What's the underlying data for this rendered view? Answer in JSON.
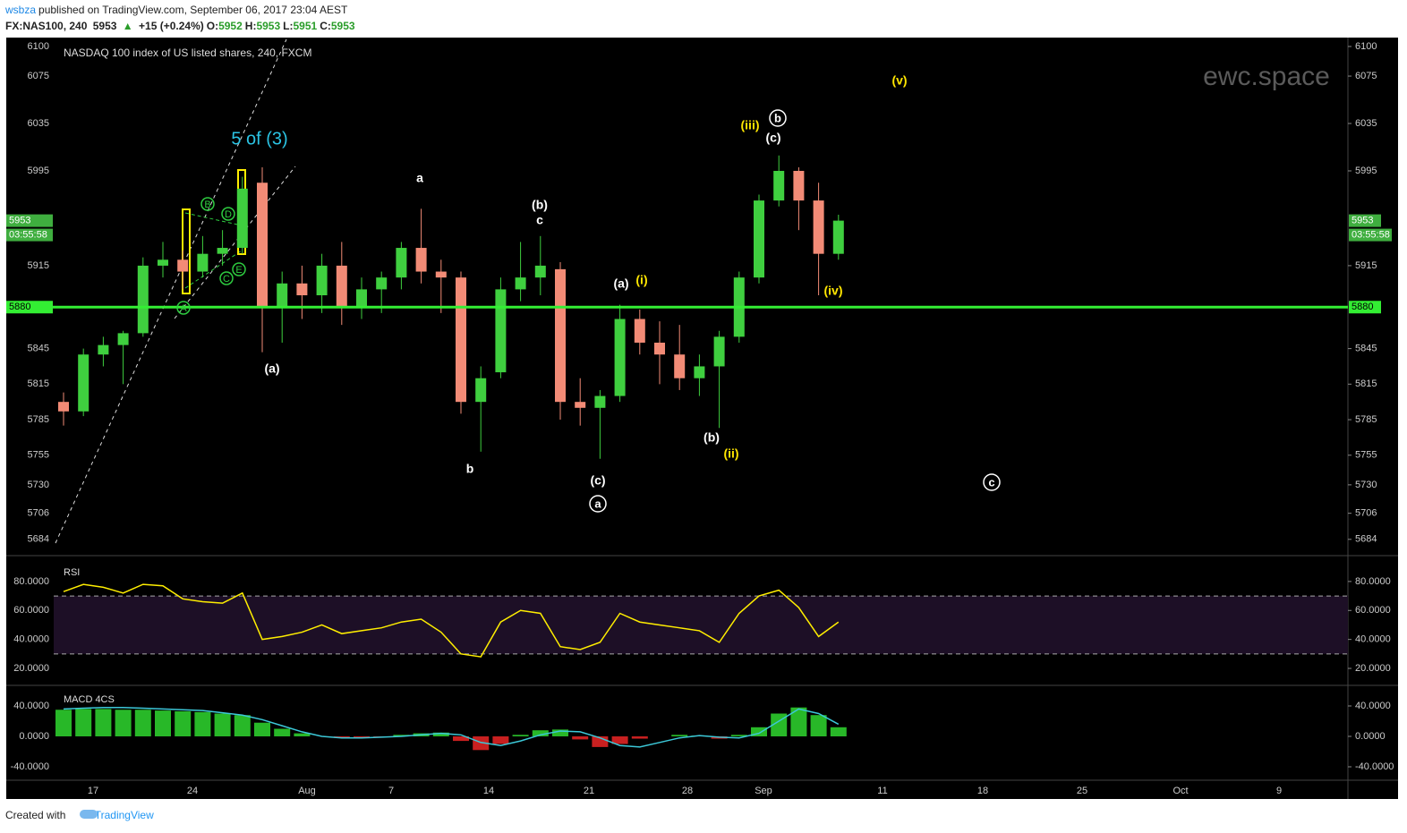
{
  "header": {
    "user": "wsbza",
    "published": "published on TradingView.com, September 06, 2017 23:04 AEST",
    "symbol": "FX:NAS100, 240",
    "last": "5953",
    "change": "+15 (+0.24%)",
    "ohlc": [
      {
        "key": "O:",
        "value": "5952"
      },
      {
        "key": "H:",
        "value": "5953"
      },
      {
        "key": "L:",
        "value": "5951"
      },
      {
        "key": "C:",
        "value": "5953"
      }
    ]
  },
  "footer": {
    "created": "Created with",
    "brand": "TradingView"
  },
  "chart_data": [
    {
      "type": "candlestick",
      "title": "NASDAQ 100 index of US listed shares, 240, FXCM",
      "watermark": "ewc.space",
      "open": [
        5800,
        5792,
        5840,
        5848,
        5858,
        5915,
        5920,
        5910,
        5925,
        5930,
        5985,
        5880,
        5900,
        5890,
        5915,
        5880,
        5895,
        5905,
        5930,
        5910,
        5905,
        5800,
        5825,
        5895,
        5905,
        5912,
        5800,
        5795,
        5805,
        5870,
        5850,
        5840,
        5820,
        5830,
        5855,
        5905,
        5970,
        5995,
        5970,
        5925
      ],
      "high": [
        5808,
        5845,
        5855,
        5860,
        5922,
        5935,
        5928,
        5940,
        5945,
        5990,
        5998,
        5910,
        5915,
        5925,
        5935,
        5905,
        5910,
        5935,
        5963,
        5920,
        5910,
        5830,
        5905,
        5935,
        5940,
        5918,
        5820,
        5810,
        5882,
        5878,
        5868,
        5865,
        5840,
        5860,
        5910,
        5975,
        6008,
        5998,
        5985,
        5958
      ],
      "low": [
        5780,
        5788,
        5830,
        5815,
        5855,
        5905,
        5895,
        5905,
        5915,
        5925,
        5842,
        5850,
        5870,
        5875,
        5865,
        5870,
        5875,
        5895,
        5900,
        5875,
        5790,
        5758,
        5820,
        5885,
        5890,
        5785,
        5780,
        5752,
        5800,
        5840,
        5815,
        5810,
        5805,
        5778,
        5850,
        5900,
        5965,
        5945,
        5890,
        5920
      ],
      "close": [
        5792,
        5840,
        5848,
        5858,
        5915,
        5920,
        5910,
        5925,
        5930,
        5980,
        5880,
        5900,
        5890,
        5915,
        5880,
        5895,
        5905,
        5930,
        5910,
        5905,
        5800,
        5820,
        5895,
        5905,
        5915,
        5800,
        5795,
        5805,
        5870,
        5850,
        5840,
        5820,
        5830,
        5855,
        5905,
        5970,
        5995,
        5970,
        5925,
        5953
      ],
      "up_color": "#3fcf3f",
      "down_color": "#f28b76",
      "ylim": [
        5671,
        6106
      ],
      "yticks": [
        5684,
        5706,
        5730,
        5755,
        5785,
        5815,
        5845,
        5915,
        5995,
        6035,
        6075,
        6100
      ],
      "hline": 5880,
      "hline_color": "#33ee33",
      "countdown": "03:55:58",
      "x_labels": [
        "17",
        "24",
        "Aug",
        "7",
        "14",
        "21",
        "28",
        "Sep",
        "11",
        "18",
        "25",
        "Oct",
        "9"
      ],
      "annotations": [
        {
          "text": "5 of (3)",
          "color": "#2bc4e4"
        },
        {
          "text": "a",
          "color": "#ffffff"
        },
        {
          "text": "(b)",
          "color": "#ffffff"
        },
        {
          "text": "c",
          "color": "#ffffff"
        },
        {
          "text": "(a)",
          "color": "#ffffff"
        },
        {
          "text": "(i)",
          "color": "#ffe600"
        },
        {
          "text": "b",
          "color": "#ffffff"
        },
        {
          "text": "(c)",
          "color": "#ffffff"
        },
        {
          "text": "a",
          "color": "#ffffff",
          "circled": true
        },
        {
          "text": "(b)",
          "color": "#ffffff"
        },
        {
          "text": "(ii)",
          "color": "#ffe600"
        },
        {
          "text": "(iii)",
          "color": "#ffe600"
        },
        {
          "text": "b",
          "color": "#ffffff",
          "circled": true
        },
        {
          "text": "(c)",
          "color": "#ffffff"
        },
        {
          "text": "(iv)",
          "color": "#ffe600"
        },
        {
          "text": "(v)",
          "color": "#ffe600"
        },
        {
          "text": "c",
          "color": "#ffffff",
          "circled": true
        },
        {
          "text": "(a)",
          "color": "#ffffff"
        },
        {
          "text": "A",
          "color": "#2ecc40",
          "circled": true
        },
        {
          "text": "B",
          "color": "#2ecc40",
          "circled": true
        },
        {
          "text": "C",
          "color": "#2ecc40",
          "circled": true
        },
        {
          "text": "D",
          "color": "#2ecc40",
          "circled": true
        },
        {
          "text": "E",
          "color": "#2ecc40",
          "circled": true
        }
      ]
    },
    {
      "type": "line",
      "title": "RSI",
      "color": "#ffee00",
      "values": [
        73,
        78,
        76,
        72,
        78,
        77,
        68,
        66,
        65,
        72,
        40,
        42,
        45,
        50,
        44,
        46,
        48,
        52,
        54,
        45,
        30,
        28,
        52,
        60,
        58,
        35,
        33,
        38,
        58,
        52,
        50,
        48,
        46,
        38,
        58,
        70,
        74,
        62,
        42,
        52
      ],
      "band": [
        30,
        70
      ],
      "ylim": [
        8.9,
        96.6
      ],
      "yticks": [
        {
          "value": 20,
          "label": "20.0000"
        },
        {
          "value": 40,
          "label": "40.0000"
        },
        {
          "value": 60,
          "label": "60.0000"
        },
        {
          "value": 80,
          "label": "80.0000"
        }
      ]
    },
    {
      "type": "macd",
      "title": "MACD 4CS",
      "color": "#3cc8d8",
      "pos_color": "#28b828",
      "neg_color": "#c82020",
      "histogram": [
        35,
        36,
        36,
        35,
        35,
        34,
        33,
        32,
        30,
        28,
        18,
        10,
        4,
        0,
        -2,
        -2,
        -1,
        2,
        4,
        5,
        -6,
        -18,
        -10,
        2,
        8,
        9,
        -4,
        -14,
        -10,
        -3,
        0,
        2,
        1,
        -3,
        2,
        12,
        30,
        38,
        28,
        12
      ],
      "signal": [
        36,
        37,
        38,
        38,
        37,
        36,
        35,
        34,
        31,
        28,
        22,
        14,
        6,
        0,
        -2,
        -2,
        -1,
        0,
        2,
        4,
        2,
        -8,
        -12,
        -6,
        2,
        7,
        6,
        -2,
        -12,
        -14,
        -8,
        -2,
        1,
        -1,
        -2,
        4,
        20,
        36,
        30,
        16
      ],
      "ylim": [
        -55.3,
        65.9
      ],
      "yticks": [
        {
          "value": -40,
          "label": "-40.0000"
        },
        {
          "value": 0,
          "label": "0.0000"
        },
        {
          "value": 40,
          "label": "40.0000"
        }
      ]
    }
  ]
}
